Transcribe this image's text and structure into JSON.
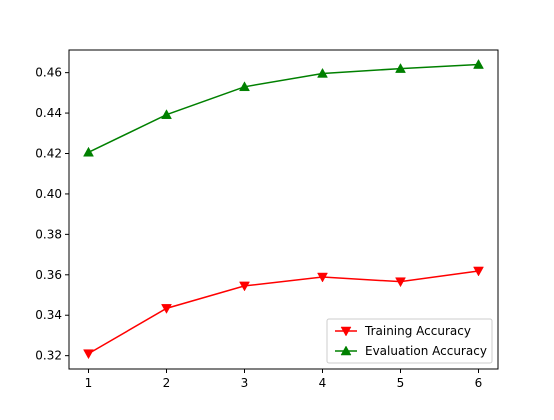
{
  "chart_data": {
    "type": "line",
    "title": "",
    "xlabel": "",
    "ylabel": "",
    "x": [
      1,
      2,
      3,
      4,
      5,
      6
    ],
    "xlim": [
      0.75,
      6.25
    ],
    "ylim": [
      0.3134,
      0.4712
    ],
    "xticks": [
      "1",
      "2",
      "3",
      "4",
      "5",
      "6"
    ],
    "yticks": [
      "0.32",
      "0.34",
      "0.36",
      "0.38",
      "0.40",
      "0.42",
      "0.44",
      "0.46"
    ],
    "grid": false,
    "legend_position": "lower-right",
    "series": [
      {
        "name": "Training Accuracy",
        "color": "#ff0000",
        "marker": "triangle-down",
        "values": [
          0.321,
          0.3434,
          0.3545,
          0.3589,
          0.3566,
          0.3619
        ]
      },
      {
        "name": "Evaluation Accuracy",
        "color": "#008000",
        "marker": "triangle-up",
        "values": [
          0.4206,
          0.4392,
          0.453,
          0.4596,
          0.462,
          0.464
        ]
      }
    ]
  }
}
